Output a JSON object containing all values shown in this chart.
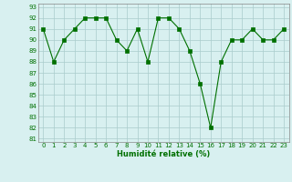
{
  "x": [
    0,
    1,
    2,
    3,
    4,
    5,
    6,
    7,
    8,
    9,
    10,
    11,
    12,
    13,
    14,
    15,
    16,
    17,
    18,
    19,
    20,
    21,
    22,
    23
  ],
  "y": [
    91,
    88,
    90,
    91,
    92,
    92,
    92,
    90,
    89,
    91,
    88,
    92,
    92,
    91,
    89,
    86,
    82,
    88,
    90,
    90,
    91,
    90,
    90,
    91
  ],
  "xlabel": "Humidité relative (%)",
  "ylim_min": 81,
  "ylim_max": 93,
  "xlim_min": -0.5,
  "xlim_max": 23.5,
  "yticks": [
    81,
    82,
    83,
    84,
    85,
    86,
    87,
    88,
    89,
    90,
    91,
    92,
    93
  ],
  "xticks": [
    0,
    1,
    2,
    3,
    4,
    5,
    6,
    7,
    8,
    9,
    10,
    11,
    12,
    13,
    14,
    15,
    16,
    17,
    18,
    19,
    20,
    21,
    22,
    23
  ],
  "line_color": "#007000",
  "marker_color": "#007000",
  "bg_color": "#d8f0f0",
  "grid_color": "#aacccc",
  "tick_color": "#007000",
  "xlabel_color": "#007000",
  "tick_fontsize": 5.0,
  "xlabel_fontsize": 6.0,
  "linewidth": 0.8,
  "markersize": 2.2
}
